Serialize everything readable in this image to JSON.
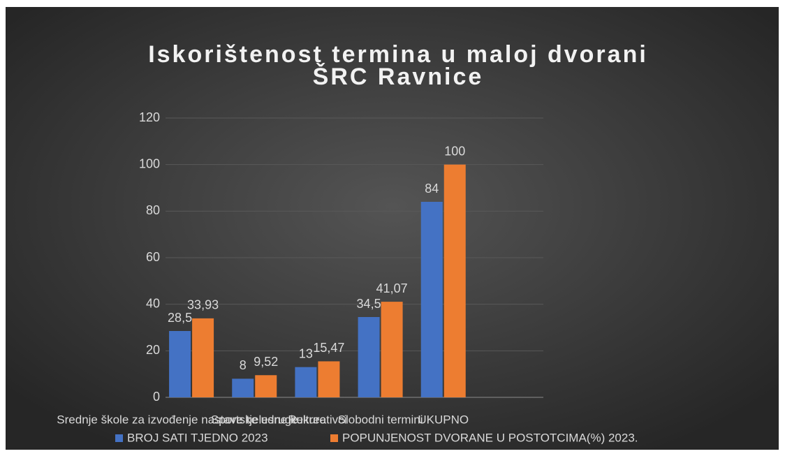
{
  "chart_data": {
    "type": "bar",
    "title": [
      "Iskorištenost termina u maloj dvorani",
      "ŠRC Ravnice"
    ],
    "categories": [
      "Srednje škole za izvođenje nastave tjelesne kulture",
      "Sportske udruge",
      "Rekreativci",
      "Slobodni termini",
      "UKUPNO",
      null
    ],
    "series": [
      {
        "name": "BROJ SATI TJEDNO 2023",
        "color": "#4472c4",
        "values": [
          28.5,
          8,
          13,
          34.5,
          84,
          null
        ],
        "value_labels": [
          "28,5",
          "8",
          "13",
          "34,5",
          "84",
          null
        ]
      },
      {
        "name": "POPUNJENOST DVORANE U POSTOTCIMA(%) 2023.",
        "color": "#ed7d31",
        "values": [
          33.93,
          9.52,
          15.47,
          41.07,
          100,
          null
        ],
        "value_labels": [
          "33,93",
          "9,52",
          "15,47",
          "41,07",
          "100",
          null
        ]
      }
    ],
    "ylim": [
      0,
      120
    ],
    "yticks": [
      0,
      20,
      40,
      60,
      80,
      100,
      120
    ],
    "grid": true,
    "legend": "bottom"
  }
}
